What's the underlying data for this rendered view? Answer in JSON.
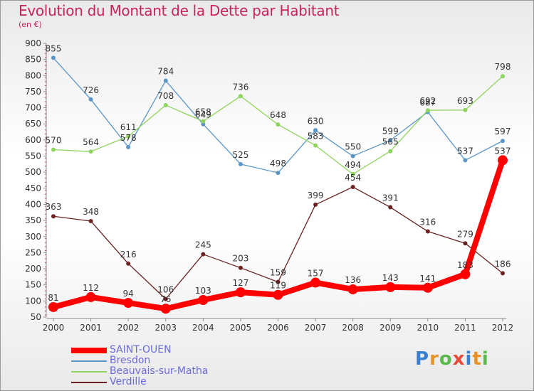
{
  "title": "Evolution du Montant de la Dette par Habitant",
  "unit": "(en €)",
  "logo": {
    "text": "Proxiti"
  },
  "chart_data": {
    "type": "line",
    "x": [
      "2000",
      "2001",
      "2002",
      "2003",
      "2004",
      "2005",
      "2006",
      "2007",
      "2008",
      "2009",
      "2010",
      "2011",
      "2012"
    ],
    "ylim": [
      50,
      900
    ],
    "yticks": [
      50,
      100,
      150,
      200,
      250,
      300,
      350,
      400,
      450,
      500,
      550,
      600,
      650,
      700,
      750,
      800,
      850,
      900
    ],
    "grid": false,
    "legend_position": "bottom-left",
    "series": [
      {
        "name": "SAINT-OUEN",
        "color": "#ff0000",
        "values": [
          81,
          112,
          94,
          76,
          103,
          127,
          119,
          157,
          136,
          143,
          141,
          183,
          537
        ],
        "labels": [
          "81",
          "112",
          "94",
          "76",
          "103",
          "127",
          "119",
          "157",
          "136",
          "143",
          "141",
          "183",
          "537"
        ]
      },
      {
        "name": "Bresdon",
        "color": "#5b96c9",
        "values": [
          855,
          726,
          578,
          784,
          649,
          525,
          498,
          630,
          550,
          599,
          687,
          537,
          597
        ],
        "labels": [
          "855",
          "726",
          "578",
          "784",
          "649",
          "525",
          "498",
          "630",
          "550",
          "599",
          "687",
          "537",
          "597"
        ]
      },
      {
        "name": "Beauvais-sur-Matha",
        "color": "#8fd45f",
        "values": [
          570,
          564,
          611,
          708,
          658,
          736,
          648,
          583,
          494,
          565,
          692,
          693,
          798
        ],
        "labels": [
          "570",
          "564",
          "611",
          "708",
          "658",
          "736",
          "648",
          "583",
          "494",
          "565",
          "692",
          "693",
          "798"
        ]
      },
      {
        "name": "Verdille",
        "color": "#6a2222",
        "values": [
          363,
          348,
          216,
          106,
          245,
          203,
          159,
          399,
          454,
          391,
          316,
          279,
          186
        ],
        "labels": [
          "363",
          "348",
          "216",
          "106",
          "245",
          "203",
          "159",
          "399",
          "454",
          "391",
          "316",
          "279",
          "186"
        ]
      }
    ]
  }
}
